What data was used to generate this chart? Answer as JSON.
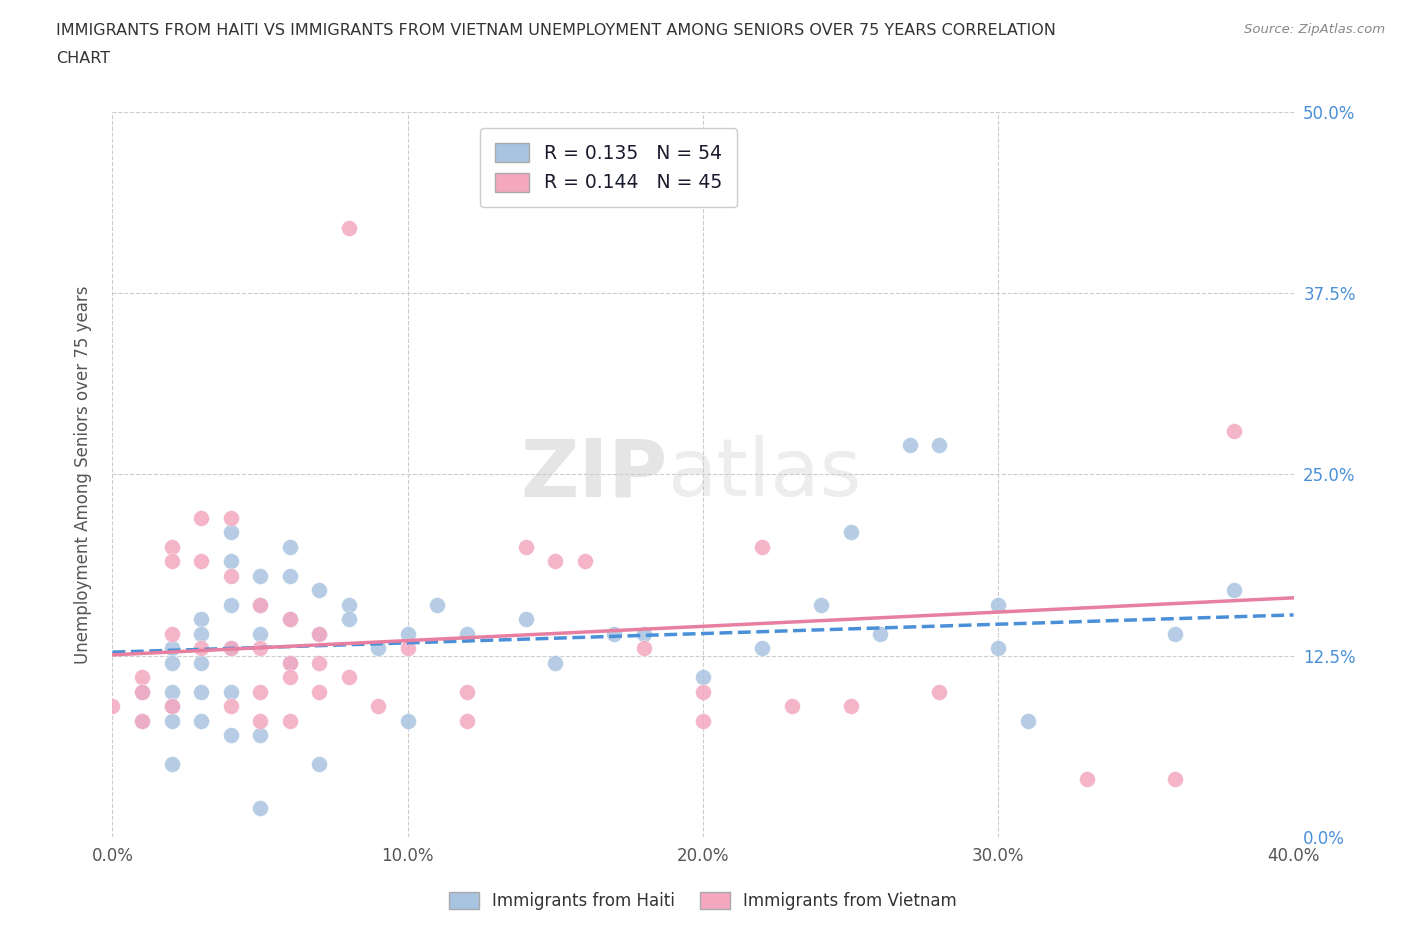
{
  "title_line1": "IMMIGRANTS FROM HAITI VS IMMIGRANTS FROM VIETNAM UNEMPLOYMENT AMONG SENIORS OVER 75 YEARS CORRELATION",
  "title_line2": "CHART",
  "source": "Source: ZipAtlas.com",
  "ylabel": "Unemployment Among Seniors over 75 years",
  "xlim": [
    0.0,
    0.4
  ],
  "ylim": [
    0.0,
    0.5
  ],
  "haiti_color": "#a8c4e0",
  "vietnam_color": "#f4a8c0",
  "haiti_line_color": "#4a90d9",
  "vietnam_line_color": "#e87fa0",
  "haiti_R": 0.135,
  "haiti_N": 54,
  "vietnam_R": 0.144,
  "vietnam_N": 45,
  "haiti_scatter_x": [
    0.01,
    0.01,
    0.02,
    0.02,
    0.02,
    0.02,
    0.02,
    0.02,
    0.03,
    0.03,
    0.03,
    0.03,
    0.03,
    0.04,
    0.04,
    0.04,
    0.04,
    0.04,
    0.05,
    0.05,
    0.05,
    0.05,
    0.06,
    0.06,
    0.06,
    0.06,
    0.07,
    0.07,
    0.07,
    0.08,
    0.08,
    0.09,
    0.1,
    0.1,
    0.11,
    0.12,
    0.14,
    0.15,
    0.17,
    0.18,
    0.2,
    0.22,
    0.24,
    0.26,
    0.27,
    0.28,
    0.3,
    0.3,
    0.31,
    0.25,
    0.36,
    0.38,
    0.04,
    0.05
  ],
  "haiti_scatter_y": [
    0.1,
    0.08,
    0.13,
    0.12,
    0.1,
    0.09,
    0.08,
    0.05,
    0.15,
    0.14,
    0.12,
    0.1,
    0.08,
    0.21,
    0.19,
    0.16,
    0.13,
    0.1,
    0.18,
    0.16,
    0.14,
    0.02,
    0.2,
    0.18,
    0.15,
    0.12,
    0.17,
    0.14,
    0.05,
    0.16,
    0.15,
    0.13,
    0.14,
    0.08,
    0.16,
    0.14,
    0.15,
    0.12,
    0.14,
    0.14,
    0.11,
    0.13,
    0.16,
    0.14,
    0.27,
    0.27,
    0.13,
    0.16,
    0.08,
    0.21,
    0.14,
    0.17,
    0.07,
    0.07
  ],
  "vietnam_scatter_x": [
    0.0,
    0.01,
    0.01,
    0.01,
    0.02,
    0.02,
    0.02,
    0.02,
    0.03,
    0.03,
    0.03,
    0.04,
    0.04,
    0.04,
    0.04,
    0.05,
    0.05,
    0.05,
    0.06,
    0.06,
    0.06,
    0.07,
    0.07,
    0.08,
    0.08,
    0.09,
    0.1,
    0.12,
    0.14,
    0.16,
    0.18,
    0.2,
    0.2,
    0.22,
    0.25,
    0.28,
    0.36,
    0.38,
    0.15,
    0.23,
    0.12,
    0.33,
    0.05,
    0.06,
    0.07
  ],
  "vietnam_scatter_y": [
    0.09,
    0.11,
    0.1,
    0.08,
    0.2,
    0.19,
    0.14,
    0.09,
    0.22,
    0.19,
    0.13,
    0.22,
    0.18,
    0.13,
    0.09,
    0.16,
    0.13,
    0.08,
    0.15,
    0.12,
    0.08,
    0.14,
    0.1,
    0.42,
    0.11,
    0.09,
    0.13,
    0.1,
    0.2,
    0.19,
    0.13,
    0.1,
    0.08,
    0.2,
    0.09,
    0.1,
    0.04,
    0.28,
    0.19,
    0.09,
    0.08,
    0.04,
    0.1,
    0.11,
    0.12
  ],
  "watermark_zip": "ZIP",
  "watermark_atlas": "atlas",
  "background_color": "#ffffff",
  "grid_color": "#cccccc",
  "ytick_vals": [
    0.0,
    0.125,
    0.25,
    0.375,
    0.5
  ],
  "ytick_labels": [
    "0.0%",
    "12.5%",
    "25.0%",
    "37.5%",
    "50.0%"
  ],
  "xtick_vals": [
    0.0,
    0.1,
    0.2,
    0.3,
    0.4
  ],
  "xtick_labels": [
    "0.0%",
    "10.0%",
    "20.0%",
    "30.0%",
    "40.0%"
  ]
}
